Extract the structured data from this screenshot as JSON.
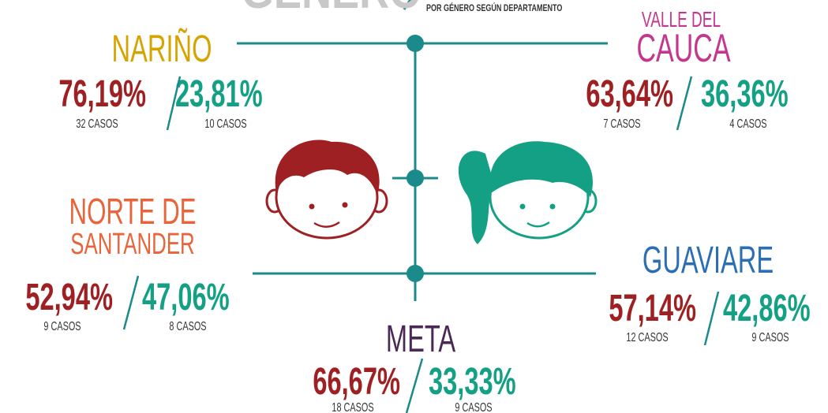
{
  "header": {
    "title": "GÉNERO",
    "subtitle": "POR GÉNERO SEGÚN DEPARTAMENTO"
  },
  "departments": [
    {
      "name": [
        "NARIÑO"
      ],
      "male_pct": "76,19%",
      "male_cases": "32 CASOS",
      "female_pct": "23,81%",
      "female_cases": "10 CASOS"
    },
    {
      "name": [
        "VALLE DEL",
        "CAUCA"
      ],
      "male_pct": "63,64%",
      "male_cases": "7 CASOS",
      "female_pct": "36,36%",
      "female_cases": "4 CASOS"
    },
    {
      "name": [
        "NORTE DE",
        "SANTANDER"
      ],
      "male_pct": "52,94%",
      "male_cases": "9 CASOS",
      "female_pct": "47,06%",
      "female_cases": "8 CASOS"
    },
    {
      "name": [
        "GUAVIARE"
      ],
      "male_pct": "57,14%",
      "male_cases": "12 CASOS",
      "female_pct": "42,86%",
      "female_cases": "9 CASOS"
    },
    {
      "name": [
        "META"
      ],
      "male_pct": "66,67%",
      "male_cases": "18 CASOS",
      "female_pct": "33,33%",
      "female_cases": "9 CASOS"
    }
  ]
}
